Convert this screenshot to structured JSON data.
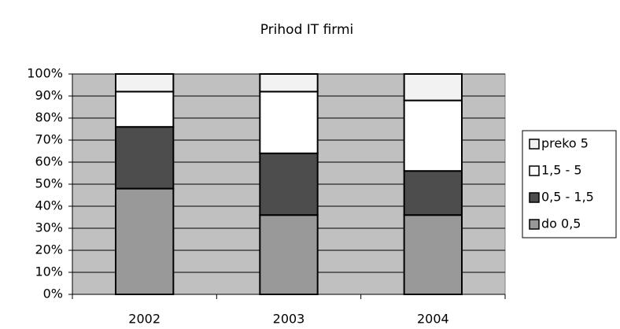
{
  "chart_data": {
    "type": "bar",
    "stacked": true,
    "title": "Prihod IT firmi",
    "categories": [
      "2002",
      "2003",
      "2004"
    ],
    "series": [
      {
        "name": "do 0,5",
        "color": "#999999",
        "values": [
          48,
          36,
          36
        ]
      },
      {
        "name": "0,5 - 1,5",
        "color": "#4d4d4d",
        "values": [
          28,
          28,
          20
        ]
      },
      {
        "name": "1,5 - 5",
        "color": "#ffffff",
        "values": [
          16,
          28,
          32
        ]
      },
      {
        "name": "preko 5",
        "color": "#f2f2f2",
        "values": [
          8,
          8,
          12
        ]
      }
    ],
    "ylim": [
      0,
      100
    ],
    "yticks": [
      {
        "value": 0,
        "label": "0%"
      },
      {
        "value": 10,
        "label": "10%"
      },
      {
        "value": 20,
        "label": "20%"
      },
      {
        "value": 30,
        "label": "30%"
      },
      {
        "value": 40,
        "label": "40%"
      },
      {
        "value": 50,
        "label": "50%"
      },
      {
        "value": 60,
        "label": "60%"
      },
      {
        "value": 70,
        "label": "70%"
      },
      {
        "value": 80,
        "label": "80%"
      },
      {
        "value": 90,
        "label": "90%"
      },
      {
        "value": 100,
        "label": "100%"
      }
    ],
    "grid": true,
    "legend": "right",
    "plot_background": "#c0c0c0"
  }
}
